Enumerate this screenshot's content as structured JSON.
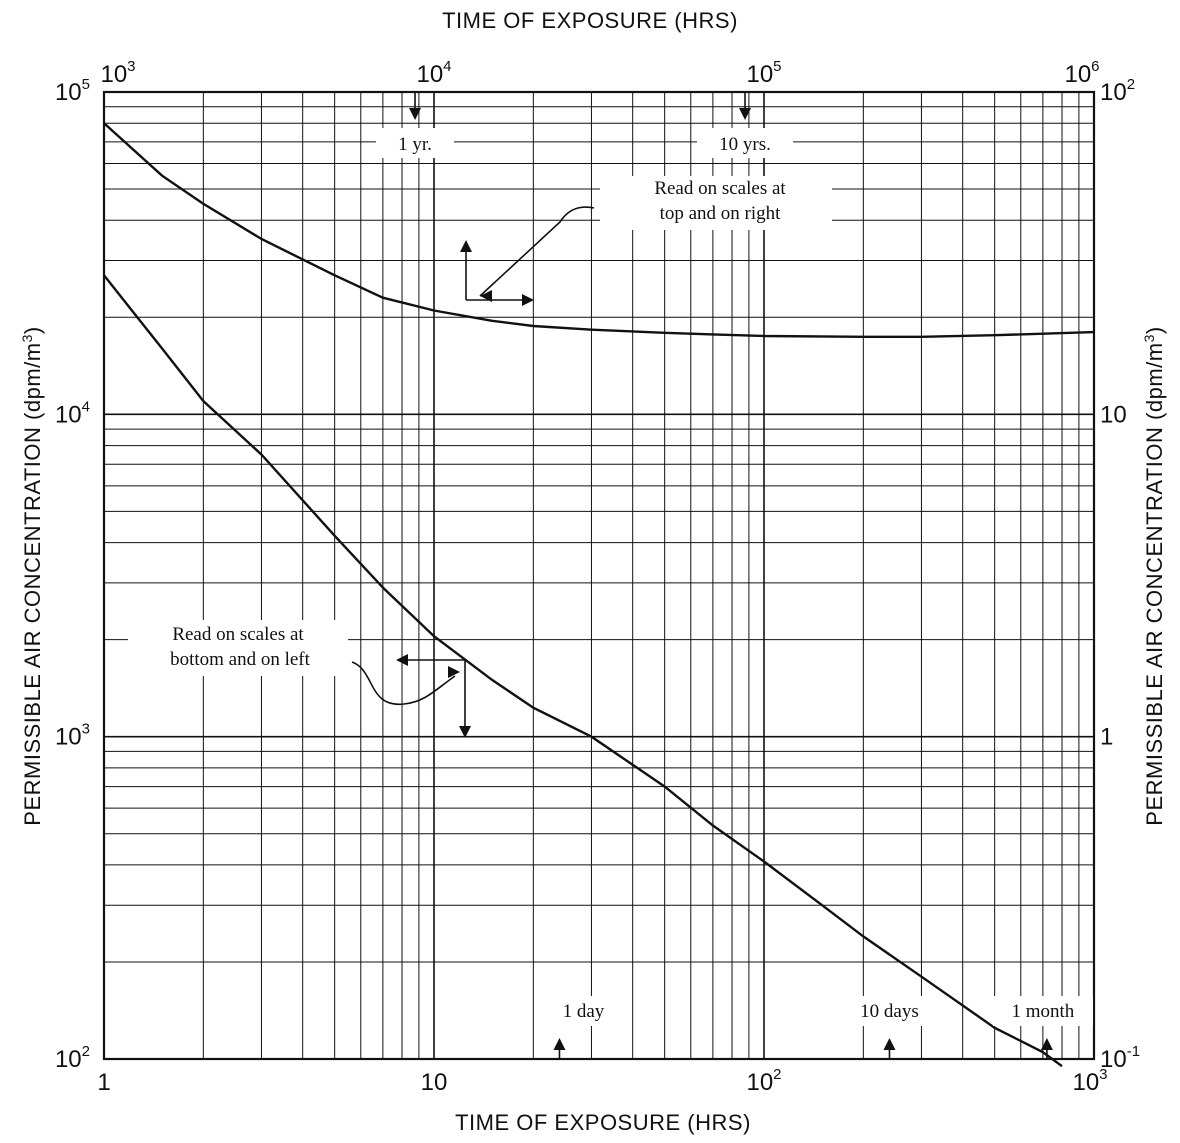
{
  "chart_data": {
    "type": "line",
    "title": "",
    "xlabel_bottom": "TIME OF EXPOSURE (HRS)",
    "xlabel_top": "TIME OF EXPOSURE (HRS)",
    "ylabel_left": "PERMISSIBLE AIR CONCENTRATION (dpm/m",
    "ylabel_right": "PERMISSIBLE AIR CONCENTRATION (dpm/m",
    "ylabel_sup": "3",
    "ylabel_close": ")",
    "x_scale": "log",
    "y_scale": "log",
    "grid": true,
    "axes": {
      "bottom": {
        "range": [
          1,
          1000
        ],
        "ticks": [
          {
            "value": 1,
            "base": "1",
            "exp": ""
          },
          {
            "value": 10,
            "base": "10",
            "exp": ""
          },
          {
            "value": 100,
            "base": "10",
            "exp": "2"
          },
          {
            "value": 1000,
            "base": "10",
            "exp": "3"
          }
        ]
      },
      "top": {
        "range": [
          1000,
          1000000
        ],
        "ticks": [
          {
            "value": 1000,
            "base": "10",
            "exp": "3"
          },
          {
            "value": 10000,
            "base": "10",
            "exp": "4"
          },
          {
            "value": 100000,
            "base": "10",
            "exp": "5"
          },
          {
            "value": 1000000,
            "base": "10",
            "exp": "6"
          }
        ]
      },
      "left": {
        "range": [
          100,
          100000
        ],
        "ticks": [
          {
            "value": 100,
            "base": "10",
            "exp": "2"
          },
          {
            "value": 1000,
            "base": "10",
            "exp": "3"
          },
          {
            "value": 10000,
            "base": "10",
            "exp": "4"
          },
          {
            "value": 100000,
            "base": "10",
            "exp": "5"
          }
        ]
      },
      "right": {
        "range": [
          0.1,
          100
        ],
        "ticks": [
          {
            "value": 0.1,
            "base": "10",
            "exp": "-1"
          },
          {
            "value": 1,
            "base": "1",
            "exp": ""
          },
          {
            "value": 10,
            "base": "10",
            "exp": ""
          },
          {
            "value": 100,
            "base": "10",
            "exp": "2"
          }
        ]
      }
    },
    "series": [
      {
        "axes": "bottom-left",
        "x": [
          1,
          1.5,
          2,
          3,
          5,
          7,
          10,
          15,
          20,
          30,
          50,
          70,
          100,
          150,
          200,
          300,
          500,
          700,
          800
        ],
        "y": [
          27000,
          16000,
          11000,
          7500,
          4200,
          2900,
          2050,
          1500,
          1230,
          1000,
          700,
          530,
          410,
          300,
          240,
          180,
          125,
          105,
          95
        ]
      },
      {
        "axes": "top-right",
        "x": [
          1000,
          1500,
          2000,
          3000,
          5000,
          7000,
          10000,
          15000,
          20000,
          30000,
          50000,
          70000,
          100000,
          200000,
          300000,
          500000,
          1000000
        ],
        "y": [
          80,
          55,
          45,
          35,
          27,
          23,
          21,
          19.5,
          18.8,
          18.3,
          17.9,
          17.7,
          17.5,
          17.4,
          17.4,
          17.6,
          18
        ]
      }
    ],
    "annotations": {
      "top_right_note_line1": "Read on scales at",
      "top_right_note_line2": "top and on right",
      "bottom_left_note_line1": "Read on scales at",
      "bottom_left_note_line2": "bottom and on left",
      "top_markers": [
        {
          "label": "1 yr.",
          "x_top": 8760
        },
        {
          "label": "10 yrs.",
          "x_top": 87600
        }
      ],
      "bottom_markers": [
        {
          "label": "1 day",
          "x_bottom": 24
        },
        {
          "label": "10 days",
          "x_bottom": 240
        },
        {
          "label": "1 month",
          "x_bottom": 720
        }
      ]
    }
  }
}
